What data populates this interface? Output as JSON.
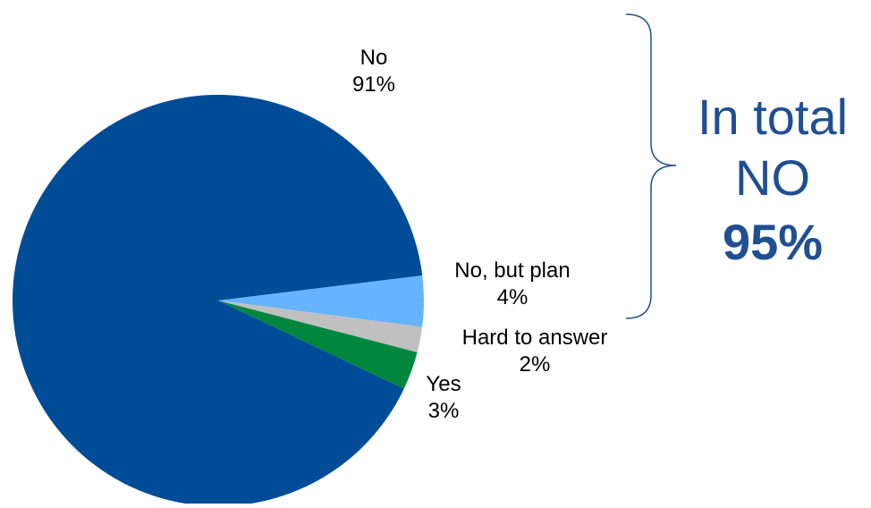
{
  "chart_data": {
    "type": "pie",
    "title": "",
    "slices": [
      {
        "label": "No",
        "value": 91,
        "value_label": "91%",
        "color": "#004c97"
      },
      {
        "label": "No, but plan",
        "value": 4,
        "value_label": "4%",
        "color": "#66b3ff"
      },
      {
        "label": "Hard to answer",
        "value": 2,
        "value_label": "2%",
        "color": "#c0c0c0"
      },
      {
        "label": "Yes",
        "value": 3,
        "value_label": "3%",
        "color": "#00873d"
      }
    ]
  },
  "callout": {
    "line1": "In total",
    "line2": "NO",
    "line3": "95%",
    "color": "#1f4f91"
  }
}
